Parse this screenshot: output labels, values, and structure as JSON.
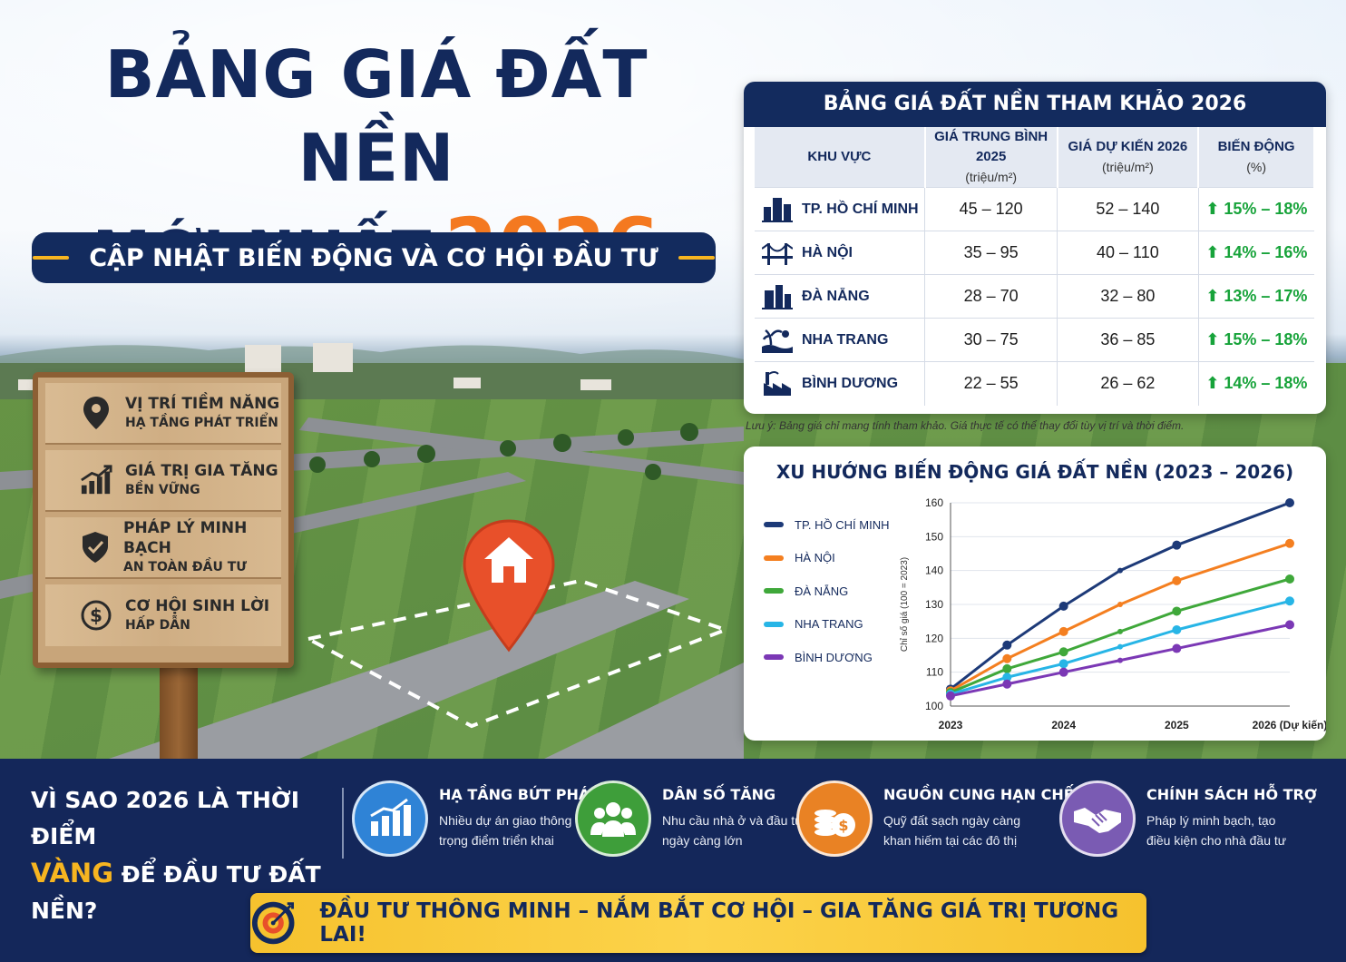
{
  "headline": {
    "line1": "BẢNG GIÁ ĐẤT NỀN",
    "line2": "MỚI NHẤT",
    "year": "2026",
    "subtitle": "CẬP NHẬT BIẾN ĐỘNG VÀ CƠ HỘI ĐẦU TƯ"
  },
  "sign": {
    "items": [
      {
        "title": "VỊ TRÍ TIỀM NĂNG",
        "sub": "HẠ TẦNG PHÁT TRIỂN",
        "icon": "location-pin-icon"
      },
      {
        "title": "GIÁ TRỊ GIA TĂNG",
        "sub": "BỀN VỮNG",
        "icon": "growth-chart-icon"
      },
      {
        "title": "PHÁP LÝ MINH BẠCH",
        "sub": "AN TOÀN ĐẦU TƯ",
        "icon": "shield-icon"
      },
      {
        "title": "CƠ HỘI SINH LỜI",
        "sub": "HẤP DẪN",
        "icon": "dollar-icon"
      }
    ]
  },
  "price_table": {
    "title": "BẢNG GIÁ ĐẤT NỀN THAM KHẢO 2026",
    "headers": [
      {
        "label": "KHU VỰC",
        "unit": ""
      },
      {
        "label": "GIÁ TRUNG BÌNH 2025",
        "unit": "(triệu/m²)"
      },
      {
        "label": "GIÁ DỰ KIẾN 2026",
        "unit": "(triệu/m²)"
      },
      {
        "label": "BIẾN ĐỘNG",
        "unit": "(%)"
      }
    ],
    "rows": [
      {
        "region": "TP. HỒ CHÍ MINH",
        "avg2025": "45 – 120",
        "forecast2026": "52 – 140",
        "change": "15% – 18%",
        "icon": "city-icon"
      },
      {
        "region": "HÀ NỘI",
        "avg2025": "35 – 95",
        "forecast2026": "40 – 110",
        "change": "14% – 16%",
        "icon": "bridge-icon"
      },
      {
        "region": "ĐÀ NẴNG",
        "avg2025": "28 – 70",
        "forecast2026": "32 – 80",
        "change": "13% – 17%",
        "icon": "buildings-icon"
      },
      {
        "region": "NHA TRANG",
        "avg2025": "30 – 75",
        "forecast2026": "36 – 85",
        "change": "15% – 18%",
        "icon": "beach-icon"
      },
      {
        "region": "BÌNH DƯƠNG",
        "avg2025": "22 – 55",
        "forecast2026": "26 – 62",
        "change": "14% – 18%",
        "icon": "factory-icon"
      }
    ],
    "up_arrow": "⬆",
    "note": "Lưu ý: Bảng giá chỉ mang tính tham khảo. Giá thực tế có thể thay đổi tùy vị trí và thời điểm."
  },
  "chart_data": {
    "type": "line",
    "title": "XU HƯỚNG BIẾN ĐỘNG GIÁ ĐẤT NỀN (2023 – 2026)",
    "ylabel": "Chỉ số giá (100 = 2023)",
    "xlabel": "",
    "x": [
      2023,
      2023.5,
      2024,
      2024.5,
      2025,
      2026
    ],
    "x_tick_labels": [
      "2023",
      "2024",
      "2025",
      "2026 (Dự kiến)"
    ],
    "x_tick_values": [
      2023,
      2024,
      2025,
      2026
    ],
    "ylim": [
      100,
      160
    ],
    "y_ticks": [
      100,
      110,
      120,
      130,
      140,
      150,
      160
    ],
    "grid": true,
    "legend_position": "left",
    "series": [
      {
        "name": "TP. HỒ CHÍ MINH",
        "color": "#1d3a78",
        "values": [
          105,
          118,
          129.5,
          140,
          147.5,
          160
        ]
      },
      {
        "name": "HÀ NỘI",
        "color": "#f47f20",
        "values": [
          104.5,
          114,
          122,
          130,
          137,
          148
        ]
      },
      {
        "name": "ĐÀ NẴNG",
        "color": "#3fa83a",
        "values": [
          104,
          111,
          116,
          122,
          128,
          137.5
        ]
      },
      {
        "name": "NHA TRANG",
        "color": "#27b5e6",
        "values": [
          103.5,
          108.5,
          112.5,
          117.5,
          122.5,
          131
        ]
      },
      {
        "name": "BÌNH DƯƠNG",
        "color": "#7b38b5",
        "values": [
          103,
          106.5,
          110,
          113.5,
          117,
          124
        ]
      }
    ]
  },
  "why": {
    "line1": "VÌ SAO 2026 LÀ THỜI ĐIỂM",
    "gold": "VÀNG",
    "line2": " ĐỂ ĐẦU TƯ ĐẤT NỀN?"
  },
  "features": [
    {
      "title": "HẠ TẦNG BỨT PHÁ",
      "desc1": "Nhiều dự án giao thông",
      "desc2": "trọng điểm triển khai",
      "color": "#2f83d6",
      "icon": "infrastructure-chart-icon"
    },
    {
      "title": "DÂN SỐ TĂNG",
      "desc1": "Nhu cầu nhà ở và đầu tư",
      "desc2": "ngày càng lớn",
      "color": "#3e9e3a",
      "icon": "people-icon"
    },
    {
      "title": "NGUỒN CUNG HẠN CHẾ",
      "desc1": "Quỹ đất sạch ngày càng",
      "desc2": "khan hiếm tại các đô thị",
      "color": "#e98224",
      "icon": "coins-icon"
    },
    {
      "title": "CHÍNH SÁCH HỖ TRỢ",
      "desc1": "Pháp lý minh bạch, tạo",
      "desc2": "điều kiện cho nhà đầu tư",
      "color": "#7a5bb3",
      "icon": "handshake-icon"
    }
  ],
  "cta": {
    "text": "ĐẦU TƯ THÔNG MINH – NẮM BẮT CƠ HỘI – GIA TĂNG GIÁ TRỊ TƯƠNG LAI!",
    "icon": "target-icon"
  }
}
